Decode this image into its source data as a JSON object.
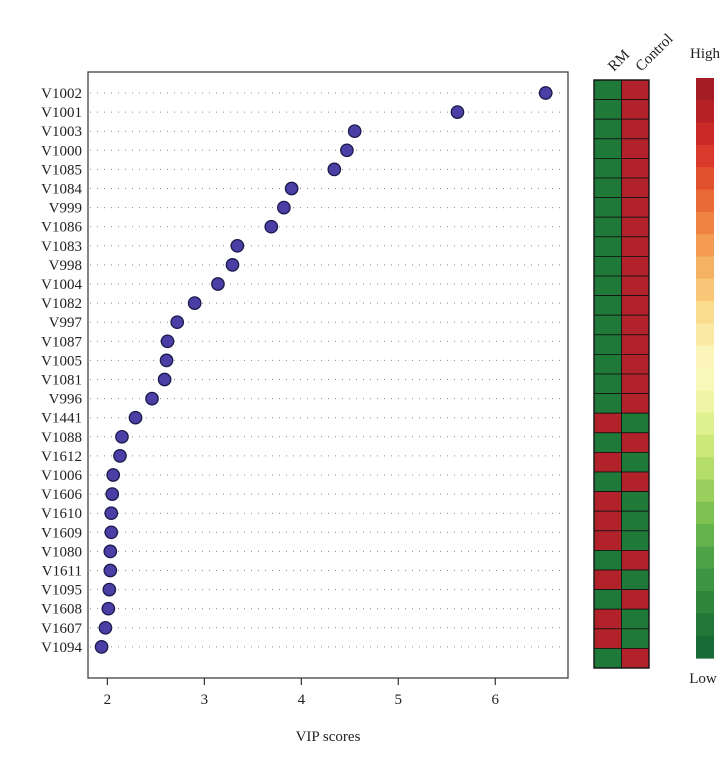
{
  "chart_data": {
    "type": "scatter",
    "title": "",
    "xlabel": "VIP scores",
    "ylabel": "",
    "xlim": [
      1.8,
      6.75
    ],
    "x_ticks": [
      2,
      3,
      4,
      5,
      6
    ],
    "grid": true,
    "point_color": "#4b3fa6",
    "point_edge_color": "#1a1a4a",
    "categories": [
      "V1002",
      "V1001",
      "V1003",
      "V1000",
      "V1085",
      "V1084",
      "V999",
      "V1086",
      "V1083",
      "V998",
      "V1004",
      "V1082",
      "V997",
      "V1087",
      "V1005",
      "V1081",
      "V996",
      "V1441",
      "V1088",
      "V1612",
      "V1006",
      "V1606",
      "V1610",
      "V1609",
      "V1080",
      "V1611",
      "V1095",
      "V1608",
      "V1607",
      "V1094"
    ],
    "values": [
      6.52,
      5.61,
      4.55,
      4.47,
      4.34,
      3.9,
      3.82,
      3.69,
      3.34,
      3.29,
      3.14,
      2.9,
      2.72,
      2.62,
      2.61,
      2.59,
      2.46,
      2.29,
      2.15,
      2.13,
      2.06,
      2.05,
      2.04,
      2.04,
      2.03,
      2.03,
      2.02,
      2.01,
      1.98,
      1.94
    ],
    "heatmap": {
      "columns": [
        "RM",
        "Control"
      ],
      "cells": [
        [
          "low",
          "high"
        ],
        [
          "low",
          "high"
        ],
        [
          "low",
          "high"
        ],
        [
          "low",
          "high"
        ],
        [
          "low",
          "high"
        ],
        [
          "low",
          "high"
        ],
        [
          "low",
          "high"
        ],
        [
          "low",
          "high"
        ],
        [
          "low",
          "high"
        ],
        [
          "low",
          "high"
        ],
        [
          "low",
          "high"
        ],
        [
          "low",
          "high"
        ],
        [
          "low",
          "high"
        ],
        [
          "low",
          "high"
        ],
        [
          "low",
          "high"
        ],
        [
          "low",
          "high"
        ],
        [
          "low",
          "high"
        ],
        [
          "high",
          "low"
        ],
        [
          "low",
          "high"
        ],
        [
          "high",
          "low"
        ],
        [
          "low",
          "high"
        ],
        [
          "high",
          "low"
        ],
        [
          "high",
          "low"
        ],
        [
          "high",
          "low"
        ],
        [
          "low",
          "high"
        ],
        [
          "high",
          "low"
        ],
        [
          "low",
          "high"
        ],
        [
          "high",
          "low"
        ],
        [
          "high",
          "low"
        ],
        [
          "low",
          "high"
        ]
      ],
      "high_color": "#b2222a",
      "low_color": "#1f7a3a"
    },
    "color_legend": {
      "high_label": "High",
      "low_label": "Low",
      "colors": [
        "#a51c24",
        "#b62127",
        "#c92a28",
        "#d8392a",
        "#e2512e",
        "#e96a37",
        "#ef8342",
        "#f39b51",
        "#f6b263",
        "#f8c878",
        "#fadc8f",
        "#fbeaa6",
        "#fcf5bb",
        "#f8f8b8",
        "#eef6a6",
        "#dff08e",
        "#cbe87a",
        "#b4dd6a",
        "#9ad05e",
        "#7fc254",
        "#65b34d",
        "#4fa347",
        "#3e9442",
        "#30853d",
        "#247739",
        "#1a6a35"
      ]
    }
  }
}
